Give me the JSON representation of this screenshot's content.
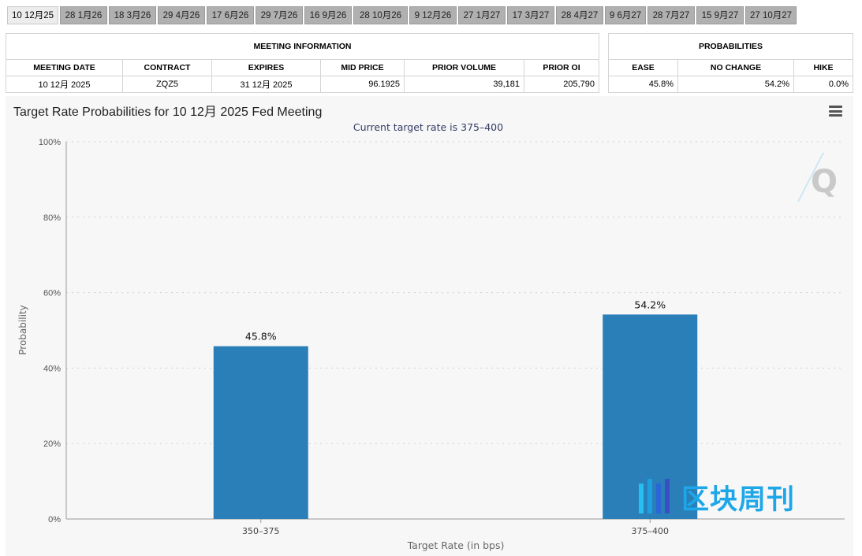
{
  "tabs": [
    {
      "label": "10 12月25",
      "active": true
    },
    {
      "label": "28 1月26"
    },
    {
      "label": "18 3月26"
    },
    {
      "label": "29 4月26"
    },
    {
      "label": "17 6月26"
    },
    {
      "label": "29 7月26"
    },
    {
      "label": "16 9月26"
    },
    {
      "label": "28 10月26"
    },
    {
      "label": "9 12月26"
    },
    {
      "label": "27 1月27"
    },
    {
      "label": "17 3月27"
    },
    {
      "label": "28 4月27"
    },
    {
      "label": "9 6月27"
    },
    {
      "label": "28 7月27"
    },
    {
      "label": "15 9月27"
    },
    {
      "label": "27 10月27"
    }
  ],
  "meeting_info": {
    "section_title": "MEETING INFORMATION",
    "headers": {
      "meeting_date": "MEETING DATE",
      "contract": "CONTRACT",
      "expires": "EXPIRES",
      "mid_price": "MID PRICE",
      "prior_volume": "PRIOR VOLUME",
      "prior_oi": "PRIOR OI"
    },
    "row": {
      "meeting_date": "10 12月 2025",
      "contract": "ZQZ5",
      "expires": "31 12月 2025",
      "mid_price": "96.1925",
      "prior_volume": "39,181",
      "prior_oi": "205,790"
    }
  },
  "probabilities": {
    "section_title": "PROBABILITIES",
    "headers": {
      "ease": "EASE",
      "no_change": "NO CHANGE",
      "hike": "HIKE"
    },
    "row": {
      "ease": "45.8%",
      "no_change": "54.2%",
      "hike": "0.0%"
    }
  },
  "chart_data": {
    "type": "bar",
    "title": "Target Rate Probabilities for 10 12月 2025 Fed Meeting",
    "subtitle": "Current target rate is 375–400",
    "xlabel": "Target Rate (in bps)",
    "ylabel": "Probability",
    "categories": [
      "350–375",
      "375–400"
    ],
    "values": [
      45.8,
      54.2
    ],
    "value_labels": [
      "45.8%",
      "54.2%"
    ],
    "ylim": [
      0,
      100
    ],
    "yticks": [
      0,
      20,
      40,
      60,
      80,
      100
    ],
    "ytick_labels": [
      "0%",
      "20%",
      "40%",
      "60%",
      "80%",
      "100%"
    ],
    "grid": true,
    "bar_color": "#2a7fb8"
  },
  "watermark": {
    "corner_mark": "Q",
    "text": "区块周刊"
  }
}
